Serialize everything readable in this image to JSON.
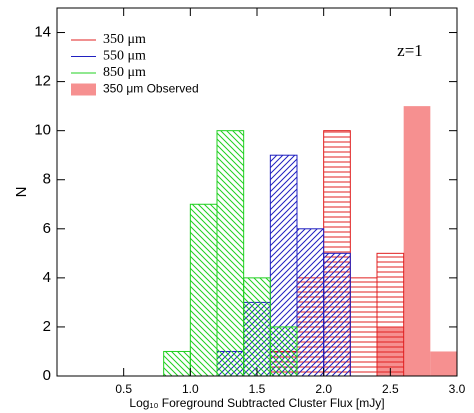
{
  "chart_data": {
    "type": "histogram",
    "xlabel": "Log₁₀ Foreground Subtracted Cluster Flux [mJy]",
    "ylabel": "N",
    "annotation": "z=1",
    "bins": [
      0.0,
      0.2,
      0.4,
      0.6,
      0.8,
      1.0,
      1.2,
      1.4,
      1.6,
      1.8,
      2.0,
      2.2,
      2.4,
      2.6,
      2.8,
      3.0
    ],
    "series": [
      {
        "name": "350 μm Observed",
        "color": "#f47c7c",
        "hatch": "solid",
        "values": [
          0,
          0,
          0,
          0,
          0,
          0,
          0,
          0,
          0,
          0,
          0,
          0,
          2,
          11,
          1
        ]
      },
      {
        "name": "350  μm",
        "color": "#e02020",
        "hatch": "horizontal",
        "values": [
          0,
          0,
          0,
          0,
          0,
          0,
          0,
          0,
          1,
          4,
          10,
          4,
          5,
          0,
          0
        ]
      },
      {
        "name": "550  μm",
        "color": "#2020c0",
        "hatch": "diagonal-up",
        "values": [
          0,
          0,
          0,
          0,
          0,
          0,
          1,
          3,
          9,
          6,
          5,
          0,
          0,
          0,
          0
        ]
      },
      {
        "name": "850  μm",
        "color": "#20d020",
        "hatch": "diagonal-down",
        "values": [
          0,
          0,
          0,
          0,
          1,
          7,
          10,
          4,
          2,
          0,
          0,
          0,
          0,
          0,
          0
        ]
      }
    ],
    "legend_order": [
      1,
      2,
      3,
      0
    ],
    "xlim": [
      0,
      3
    ],
    "ylim": [
      0,
      15
    ],
    "xticks": [
      0.5,
      {
        "value": 1,
        "label": "1.0"
      },
      1.5,
      {
        "value": 2,
        "label": "2.0"
      },
      2.5,
      {
        "value": 3,
        "label": "3.0"
      }
    ],
    "yticks": [
      0,
      2,
      4,
      6,
      8,
      10,
      12,
      14
    ]
  }
}
